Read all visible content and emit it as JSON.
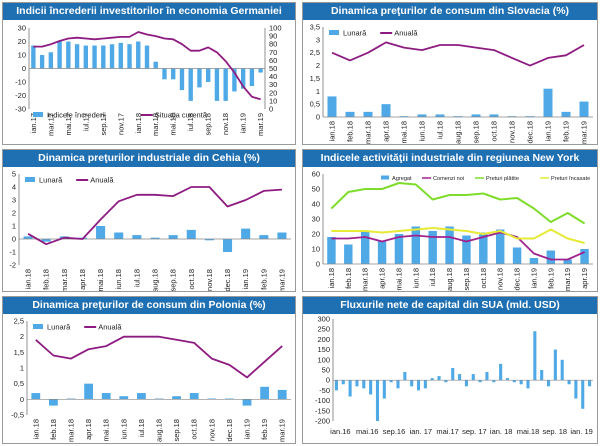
{
  "chart_data": [
    {
      "id": "c1",
      "type": "bar+line (dual axis)",
      "title": "Indicii încrederii investitorilor în economia Germaniei",
      "categories": [
        "ian.17",
        "feb.17",
        "mar.17",
        "apr.17",
        "mai.17",
        "iun.17",
        "iul.17",
        "aug.17",
        "sep.17",
        "oct.17",
        "nov.17",
        "dec.17",
        "ian.18",
        "feb.18",
        "mar.18",
        "apr.18",
        "mai.18",
        "iun.18",
        "iul.18",
        "aug.18",
        "sep.18",
        "oct.18",
        "nov.18",
        "dec.18",
        "ian.19",
        "feb.19",
        "mar.19"
      ],
      "xtick_labels": [
        "ian.17",
        "mar.17",
        "mai.17",
        "iul.17",
        "sep.17",
        "nov.17",
        "ian.18",
        "mar.18",
        "mai.18",
        "iul.18",
        "sep.18",
        "nov.18",
        "ian.19",
        "mar.19"
      ],
      "series": [
        {
          "name": "Indicele încrederii",
          "type": "bar",
          "axis": "left",
          "values": [
            17,
            10,
            12,
            20,
            20,
            18,
            17,
            17,
            17,
            18,
            19,
            18,
            20,
            17,
            5,
            -8,
            -8,
            -16,
            -24,
            -14,
            -10,
            -24,
            -24,
            -17,
            -15,
            -13,
            -3
          ]
        },
        {
          "name": "Situaţia curentă",
          "type": "line",
          "axis": "right",
          "values": [
            77,
            77,
            80,
            84,
            87,
            88,
            87,
            86,
            87,
            88,
            89,
            89,
            95,
            92,
            90,
            87,
            86,
            80,
            72,
            72,
            76,
            70,
            59,
            45,
            28,
            15,
            12
          ]
        }
      ],
      "ylim_left": [
        -30,
        30
      ],
      "yticks_left": [
        -30,
        -20,
        -10,
        0,
        10,
        20,
        30
      ],
      "ylim_right": [
        0,
        100
      ],
      "yticks_right": [
        0,
        10,
        20,
        30,
        40,
        50,
        60,
        70,
        80,
        90,
        100
      ],
      "legend": "bottom-left"
    },
    {
      "id": "c2",
      "type": "bar+line",
      "title": "Dinamica preţurilor de consum din Slovacia (%)",
      "categories": [
        "ian.18",
        "feb.18",
        "mar.18",
        "apr.18",
        "mai.18",
        "iun.18",
        "iul.18",
        "aug.18",
        "sep.18",
        "oct.18",
        "nov.18",
        "dec.18",
        "ian.19",
        "feb.19",
        "mar.19"
      ],
      "xtick_labels": [
        "ian.18",
        "feb.18",
        "mar.18",
        "apr.18",
        "mai.18",
        "iun.18",
        "iul.18",
        "aug.18",
        "sep.18",
        "oct.18",
        "nov.18",
        "dec.18",
        "ian.19",
        "feb.19",
        "mar.19"
      ],
      "series": [
        {
          "name": "Lunară",
          "type": "bar",
          "values": [
            0.8,
            0.2,
            0.2,
            0.5,
            0.0,
            0.1,
            0.1,
            0.0,
            0.1,
            0.1,
            0.0,
            0.0,
            1.1,
            0.2,
            0.6
          ]
        },
        {
          "name": "Anuală",
          "type": "line",
          "values": [
            2.5,
            2.2,
            2.5,
            2.9,
            2.7,
            2.6,
            2.8,
            2.8,
            2.7,
            2.6,
            2.3,
            2.0,
            2.3,
            2.4,
            2.8
          ]
        }
      ],
      "ylim": [
        0,
        3.5
      ],
      "yticks": [
        0,
        0.5,
        1,
        1.5,
        2,
        2.5,
        3,
        3.5
      ],
      "ytick_labels": [
        "0",
        "0,5",
        "1",
        "1,5",
        "2",
        "2,5",
        "3",
        "3,5"
      ],
      "legend": "top-left"
    },
    {
      "id": "c3",
      "type": "bar+line",
      "title": "Dinamica preţurilor industriale din Cehia (%)",
      "categories": [
        "ian.18",
        "feb.18",
        "mar.18",
        "apr.18",
        "mai.18",
        "iun.18",
        "iul.18",
        "aug.18",
        "sep.18",
        "oct.18",
        "nov.18",
        "dec.18",
        "ian.19",
        "feb.19",
        "mar.19"
      ],
      "xtick_labels": [
        "ian.18",
        "feb.18",
        "mar.18",
        "apr.18",
        "mai.18",
        "iun.18",
        "iul.18",
        "aug.18",
        "sep.18",
        "oct.18",
        "nov.18",
        "dec.18",
        "ian.19",
        "feb.19",
        "mar.19"
      ],
      "series": [
        {
          "name": "Lunară",
          "type": "bar",
          "values": [
            0.2,
            -0.2,
            0.2,
            0.1,
            1.0,
            0.5,
            0.3,
            0.1,
            0.3,
            0.7,
            -0.1,
            -1.0,
            0.8,
            0.3,
            0.5
          ]
        },
        {
          "name": "Anuală",
          "type": "line",
          "values": [
            0.4,
            -0.4,
            0.1,
            0.0,
            1.5,
            2.9,
            3.4,
            3.4,
            3.3,
            4.0,
            4.0,
            2.5,
            3.0,
            3.7,
            3.8
          ]
        }
      ],
      "ylim": [
        -2,
        5
      ],
      "yticks": [
        -2,
        -1,
        0,
        1,
        2,
        3,
        4,
        5
      ],
      "legend": "top-left"
    },
    {
      "id": "c4",
      "type": "bar+line",
      "title": "Indicele activităţii industriale din regiunea New York",
      "categories": [
        "ian.18",
        "feb.18",
        "mar.18",
        "apr.18",
        "mai.18",
        "iun.18",
        "iul.18",
        "aug.18",
        "sep.18",
        "oct.18",
        "nov.18",
        "dec.18",
        "ian.19",
        "feb.19",
        "mar.19",
        "apr.19"
      ],
      "xtick_labels": [
        "ian.18",
        "feb.18",
        "mar.18",
        "apr.18",
        "mai.18",
        "iun.18",
        "iul.18",
        "aug.18",
        "sep.18",
        "oct.18",
        "nov.18",
        "dec.18",
        "ian.19",
        "feb.19",
        "mar.19",
        "apr.19"
      ],
      "series": [
        {
          "name": "Agregat",
          "type": "bar",
          "values": [
            18,
            13,
            22,
            15,
            20,
            25,
            22,
            25,
            19,
            21,
            23,
            11,
            4,
            9,
            3,
            10
          ]
        },
        {
          "name": "Comenzi noi",
          "type": "line",
          "values": [
            17,
            17,
            18,
            15,
            18,
            19,
            18,
            18,
            15,
            18,
            21,
            18,
            7,
            3,
            3,
            8
          ]
        },
        {
          "name": "Preturi plătite",
          "type": "line",
          "values": [
            37,
            48,
            50,
            50,
            54,
            53,
            43,
            46,
            46,
            47,
            43,
            44,
            37,
            28,
            34,
            27
          ]
        },
        {
          "name": "Preturi încasate",
          "type": "line",
          "values": [
            22,
            22,
            22,
            21,
            22,
            23,
            24,
            23,
            22,
            20,
            22,
            17,
            17,
            23,
            17,
            14
          ]
        }
      ],
      "ylim": [
        0,
        60
      ],
      "yticks": [
        0,
        10,
        20,
        30,
        40,
        50,
        60
      ],
      "legend": "top"
    },
    {
      "id": "c5",
      "type": "bar+line",
      "title": "Dinamica preţurilor de consum din Polonia (%)",
      "categories": [
        "ian.18",
        "feb.18",
        "mar.18",
        "apr.18",
        "mai.18",
        "iun.18",
        "iul.18",
        "aug.18",
        "sep.18",
        "oct.18",
        "nov.18",
        "dec.18",
        "ian.19",
        "feb.19",
        "mar.19"
      ],
      "xtick_labels": [
        "ian.18",
        "feb.18",
        "mar.18",
        "apr.18",
        "mai.18",
        "iun.18",
        "iul.18",
        "aug.18",
        "sep.18",
        "oct.18",
        "nov.18",
        "dec.18",
        "ian.19",
        "feb.19",
        "mar.19"
      ],
      "series": [
        {
          "name": "Lunară",
          "type": "bar",
          "values": [
            0.2,
            -0.2,
            0.0,
            0.5,
            0.2,
            0.1,
            0.2,
            0.0,
            0.1,
            0.2,
            0.0,
            0.0,
            -0.2,
            0.4,
            0.3
          ]
        },
        {
          "name": "Anuală",
          "type": "line",
          "values": [
            1.9,
            1.4,
            1.3,
            1.6,
            1.7,
            2.0,
            2.0,
            2.0,
            1.9,
            1.8,
            1.3,
            1.1,
            0.7,
            1.2,
            1.7
          ]
        }
      ],
      "ylim": [
        -0.5,
        2.5
      ],
      "yticks": [
        -0.5,
        0,
        0.5,
        1,
        1.5,
        2,
        2.5
      ],
      "ytick_labels": [
        "-0,5",
        "0",
        "0,5",
        "1",
        "1,5",
        "2",
        "2,5"
      ],
      "legend": "top-left"
    },
    {
      "id": "c6",
      "type": "bar",
      "title": "Fluxurile nete de capital din SUA (mld. USD)",
      "n_points": 38,
      "series": [
        {
          "name": "Fluxuri nete",
          "type": "bar",
          "values": [
            -50,
            -20,
            -80,
            -30,
            -40,
            -70,
            -200,
            -90,
            -10,
            -40,
            40,
            -30,
            -50,
            -40,
            10,
            20,
            -10,
            60,
            30,
            -30,
            30,
            -10,
            40,
            -10,
            80,
            10,
            -10,
            -20,
            -40,
            240,
            50,
            -30,
            150,
            100,
            -20,
            -90,
            -140,
            -30
          ]
        }
      ],
      "ylim": [
        -200,
        300
      ],
      "yticks": [
        -200,
        -150,
        -100,
        -50,
        0,
        50,
        100,
        150,
        200,
        250,
        300
      ],
      "xtick_labels": [
        "ian.16",
        "mai.16",
        "sep.16",
        "ian. 17",
        "mai.17",
        "sep. 17",
        "ian. 18",
        "mai.18",
        "sep. 18",
        "ian. 19"
      ],
      "legend": "none"
    }
  ]
}
